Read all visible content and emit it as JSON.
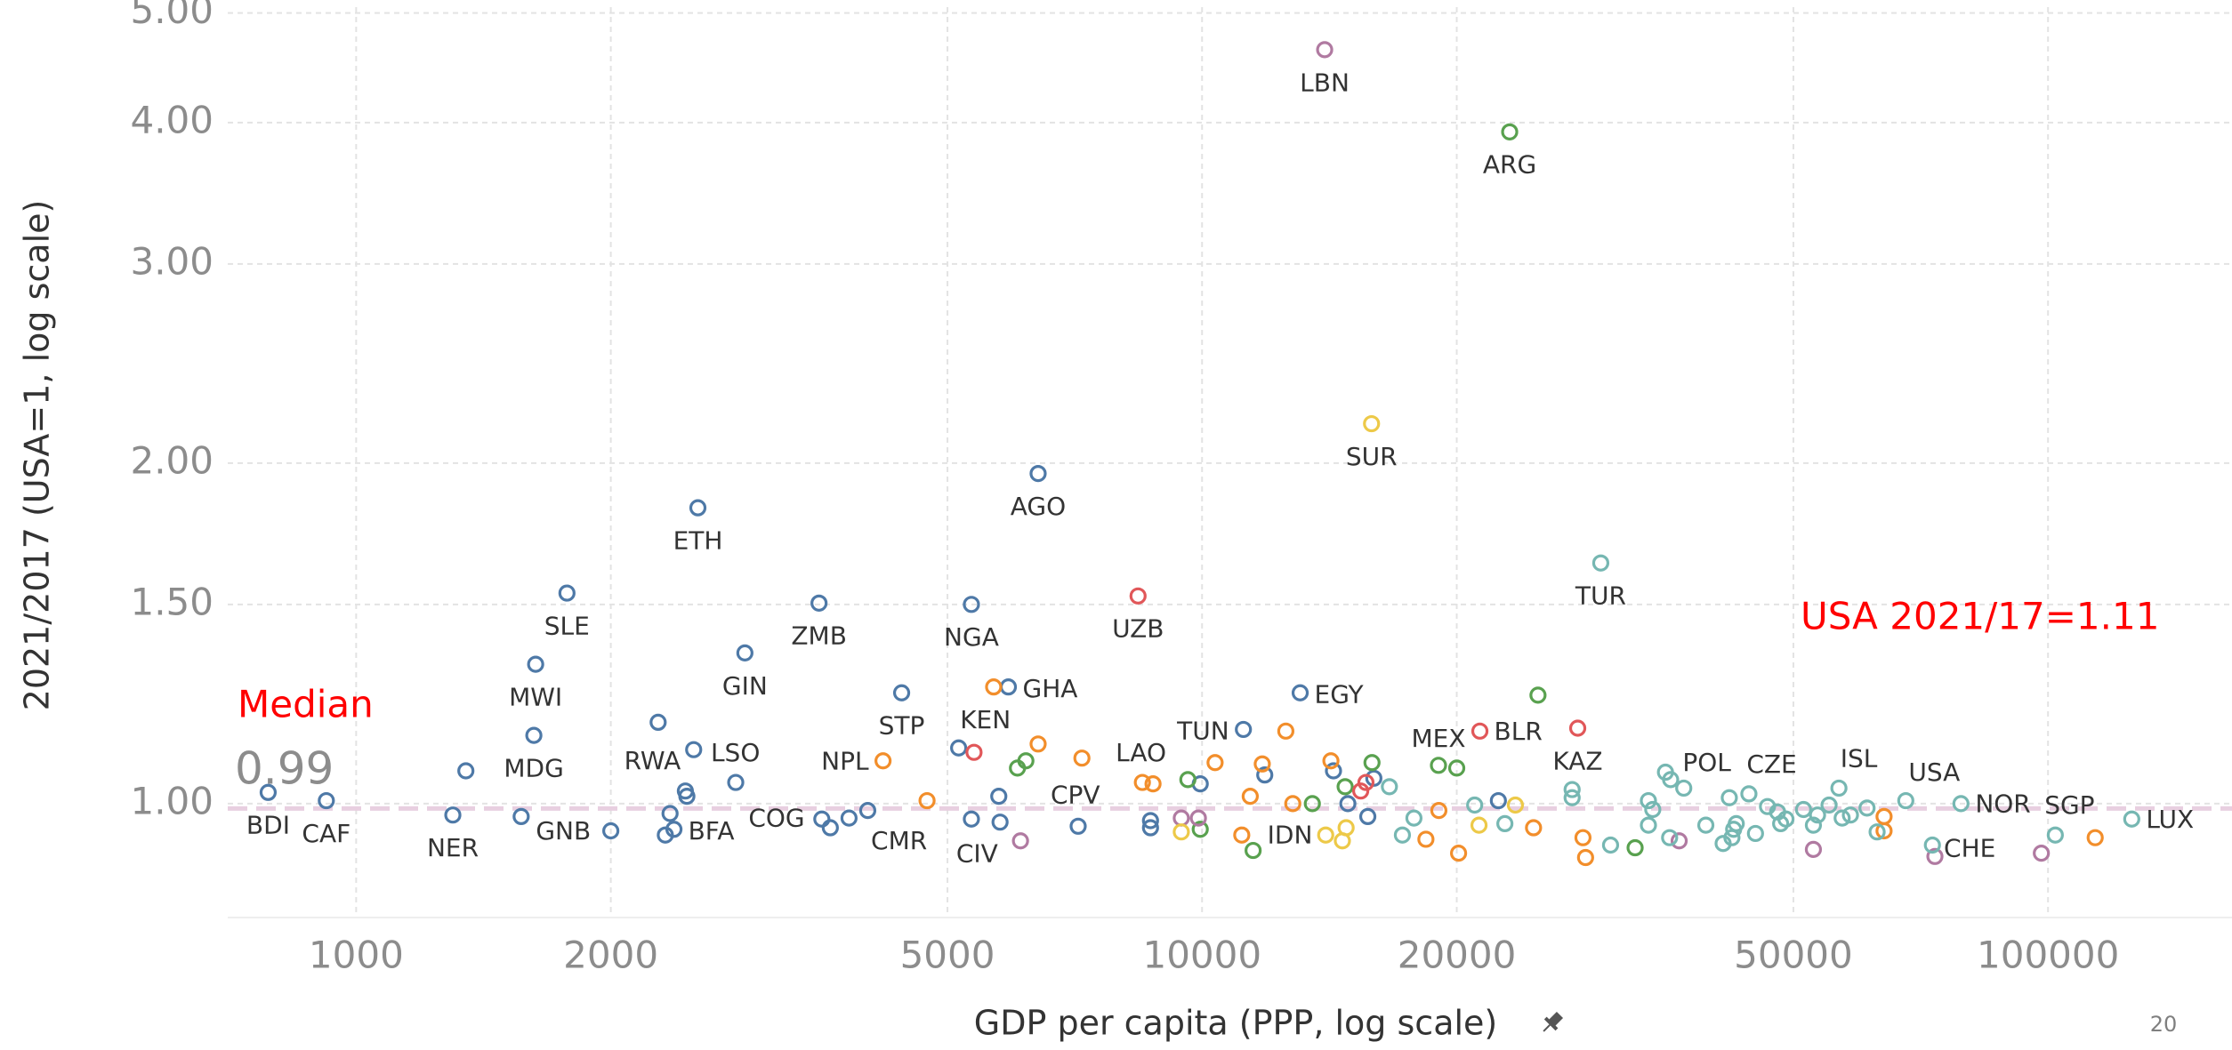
{
  "chart_data": {
    "type": "scatter",
    "x_label": "GDP per capita (PPP, log scale)",
    "y_label": "2021/2017 (USA=1, log scale)",
    "x_log": true,
    "y_log": true,
    "grid": true,
    "xlim": [
      705,
      165000
    ],
    "ylim": [
      0.793,
      5.06
    ],
    "xticks": [
      1000,
      2000,
      5000,
      10000,
      20000,
      50000,
      100000
    ],
    "yticks": [
      {
        "value": 1,
        "label": "1.00"
      },
      {
        "value": 1.5,
        "label": "1.50"
      },
      {
        "value": 2,
        "label": "2.00"
      },
      {
        "value": 3,
        "label": "3.00"
      },
      {
        "value": 4,
        "label": "4.00"
      },
      {
        "value": 5,
        "label": "5.00"
      }
    ],
    "median": {
      "label": "Median",
      "value": 0.99,
      "color": "#e8cfe0"
    },
    "annotation": {
      "text": "USA 2021/17=1.11",
      "color": "#ff0000"
    },
    "page_number": 20,
    "series": [
      {
        "color": "#4e79a7",
        "x": [
          787,
          922,
          1301,
          1348,
          1567,
          1622,
          1630,
          1775,
          2000,
          2275,
          2375,
          2320,
          2350,
          2450,
          2460,
          2506,
          2535,
          2810,
          2881,
          3525,
          3552,
          3635,
          3825,
          4025,
          4414,
          5155,
          5337,
          5337,
          5750,
          5770,
          5902,
          6400,
          7137,
          8690,
          8690,
          9950,
          11190,
          11860,
          13060,
          14300,
          14870,
          15700,
          15960,
          22400
        ],
        "values": [
          1.023,
          1.006,
          0.977,
          1.069,
          0.974,
          1.149,
          1.328,
          1.535,
          0.946,
          1.18,
          0.949,
          0.938,
          0.98,
          1.026,
          1.015,
          1.116,
          1.826,
          1.044,
          1.359,
          1.504,
          0.969,
          0.952,
          0.971,
          0.986,
          1.253,
          1.12,
          1.5,
          0.969,
          1.015,
          0.963,
          1.268,
          1.958,
          0.955,
          0.952,
          0.966,
          1.041,
          1.163,
          1.06,
          1.253,
          1.069,
          1.0,
          0.974,
          1.053,
          1.006
        ],
        "labels": [
          "BDI",
          "CAF",
          "NER",
          null,
          null,
          "MDG",
          "MWI",
          "SLE",
          "GNB",
          "RWA",
          "BFA",
          null,
          null,
          null,
          null,
          "LSO",
          "ETH",
          null,
          "GIN",
          "ZMB",
          "COG",
          null,
          null,
          "CMR",
          "STP",
          null,
          "NGA",
          "CIV",
          null,
          null,
          "GHA",
          "AGO",
          "CPV",
          null,
          null,
          null,
          "TUN",
          null,
          "EGY",
          null,
          null,
          null,
          null,
          null
        ]
      },
      {
        "color": "#f28e2b",
        "x": [
          4196,
          4730,
          5670,
          6400,
          7210,
          8500,
          8750,
          10360,
          11140,
          11400,
          11780,
          12560,
          12800,
          14200,
          18390,
          19050,
          20100,
          24650,
          28200,
          28400,
          64000,
          64000,
          113700
        ],
        "values": [
          1.091,
          1.006,
          1.268,
          1.129,
          1.097,
          1.044,
          1.041,
          1.087,
          0.938,
          1.015,
          1.084,
          1.159,
          1.0,
          1.091,
          0.93,
          0.986,
          0.904,
          0.952,
          0.933,
          0.896,
          0.974,
          0.946,
          0.933
        ],
        "labels": [
          "NPL",
          null,
          null,
          null,
          null,
          "LAO",
          null,
          null,
          null,
          null,
          null,
          null,
          null,
          null,
          null,
          null,
          null,
          null,
          null,
          null,
          null,
          null,
          null
        ]
      },
      {
        "color": "#59a14f",
        "x": [
          6050,
          6190,
          9620,
          9950,
          11490,
          13500,
          14760,
          15880,
          19030,
          20000,
          23100,
          24950,
          32500
        ],
        "values": [
          1.075,
          1.091,
          1.05,
          0.949,
          0.909,
          1.0,
          1.035,
          1.087,
          1.081,
          1.075,
          3.925,
          1.247,
          0.914
        ],
        "labels": [
          null,
          null,
          null,
          null,
          "IDN",
          null,
          null,
          null,
          "MEX",
          null,
          "ARG",
          null,
          null
        ]
      },
      {
        "color": "#e15759",
        "x": [
          5375,
          8400,
          15400,
          15620,
          21300,
          27800
        ],
        "values": [
          1.11,
          1.526,
          1.026,
          1.044,
          1.159,
          1.166
        ],
        "labels": [
          "KEN",
          "UZB",
          null,
          null,
          "BLR",
          "KAZ"
        ]
      },
      {
        "color": "#b07aa1",
        "x": [
          6100,
          9450,
          9900,
          13960,
          36640,
          52800,
          73500,
          98200
        ],
        "values": [
          0.927,
          0.971,
          0.971,
          4.64,
          0.927,
          0.911,
          0.898,
          0.904
        ],
        "labels": [
          null,
          null,
          null,
          "LBN",
          null,
          null,
          null,
          null
        ]
      },
      {
        "color": "#edc948",
        "x": [
          9450,
          14000,
          14650,
          14800,
          15860,
          21250,
          23460
        ],
        "values": [
          0.944,
          0.938,
          0.927,
          0.952,
          2.167,
          0.957,
          0.997
        ],
        "labels": [
          null,
          null,
          null,
          null,
          "SUR",
          null,
          null
        ]
      },
      {
        "color": "#76b7b2",
        "x": [
          16650,
          17250,
          17800,
          21000,
          22800,
          27380,
          27380,
          29600,
          30400,
          33700,
          33700,
          34100,
          35300,
          35800,
          37100,
          35700,
          39400,
          41300,
          42000,
          42500,
          42800,
          42300,
          44300,
          45100,
          46600,
          47900,
          48300,
          49000,
          51400,
          52800,
          53400,
          55100,
          56600,
          57100,
          58400,
          61100,
          62800,
          67900,
          73000,
          78900,
          102000,
          125600
        ],
        "values": [
          1.035,
          0.938,
          0.971,
          0.997,
          0.96,
          1.029,
          1.012,
          1.632,
          0.919,
          1.006,
          0.957,
          0.988,
          1.066,
          1.05,
          1.032,
          0.933,
          0.957,
          0.922,
          1.012,
          0.949,
          0.96,
          0.933,
          1.02,
          0.941,
          0.994,
          0.983,
          0.96,
          0.969,
          0.988,
          0.957,
          0.977,
          0.997,
          1.032,
          0.971,
          0.977,
          0.991,
          0.944,
          1.006,
          0.919,
          1.0,
          0.938,
          0.969
        ],
        "labels": [
          null,
          null,
          null,
          null,
          null,
          null,
          null,
          "TUR",
          null,
          null,
          null,
          null,
          "POL",
          null,
          null,
          null,
          null,
          null,
          null,
          null,
          null,
          null,
          "CZE",
          null,
          null,
          null,
          null,
          null,
          null,
          null,
          null,
          null,
          "ISL",
          null,
          null,
          null,
          null,
          "USA",
          "CHE",
          "NOR",
          "SGP",
          "LUX"
        ]
      }
    ]
  }
}
